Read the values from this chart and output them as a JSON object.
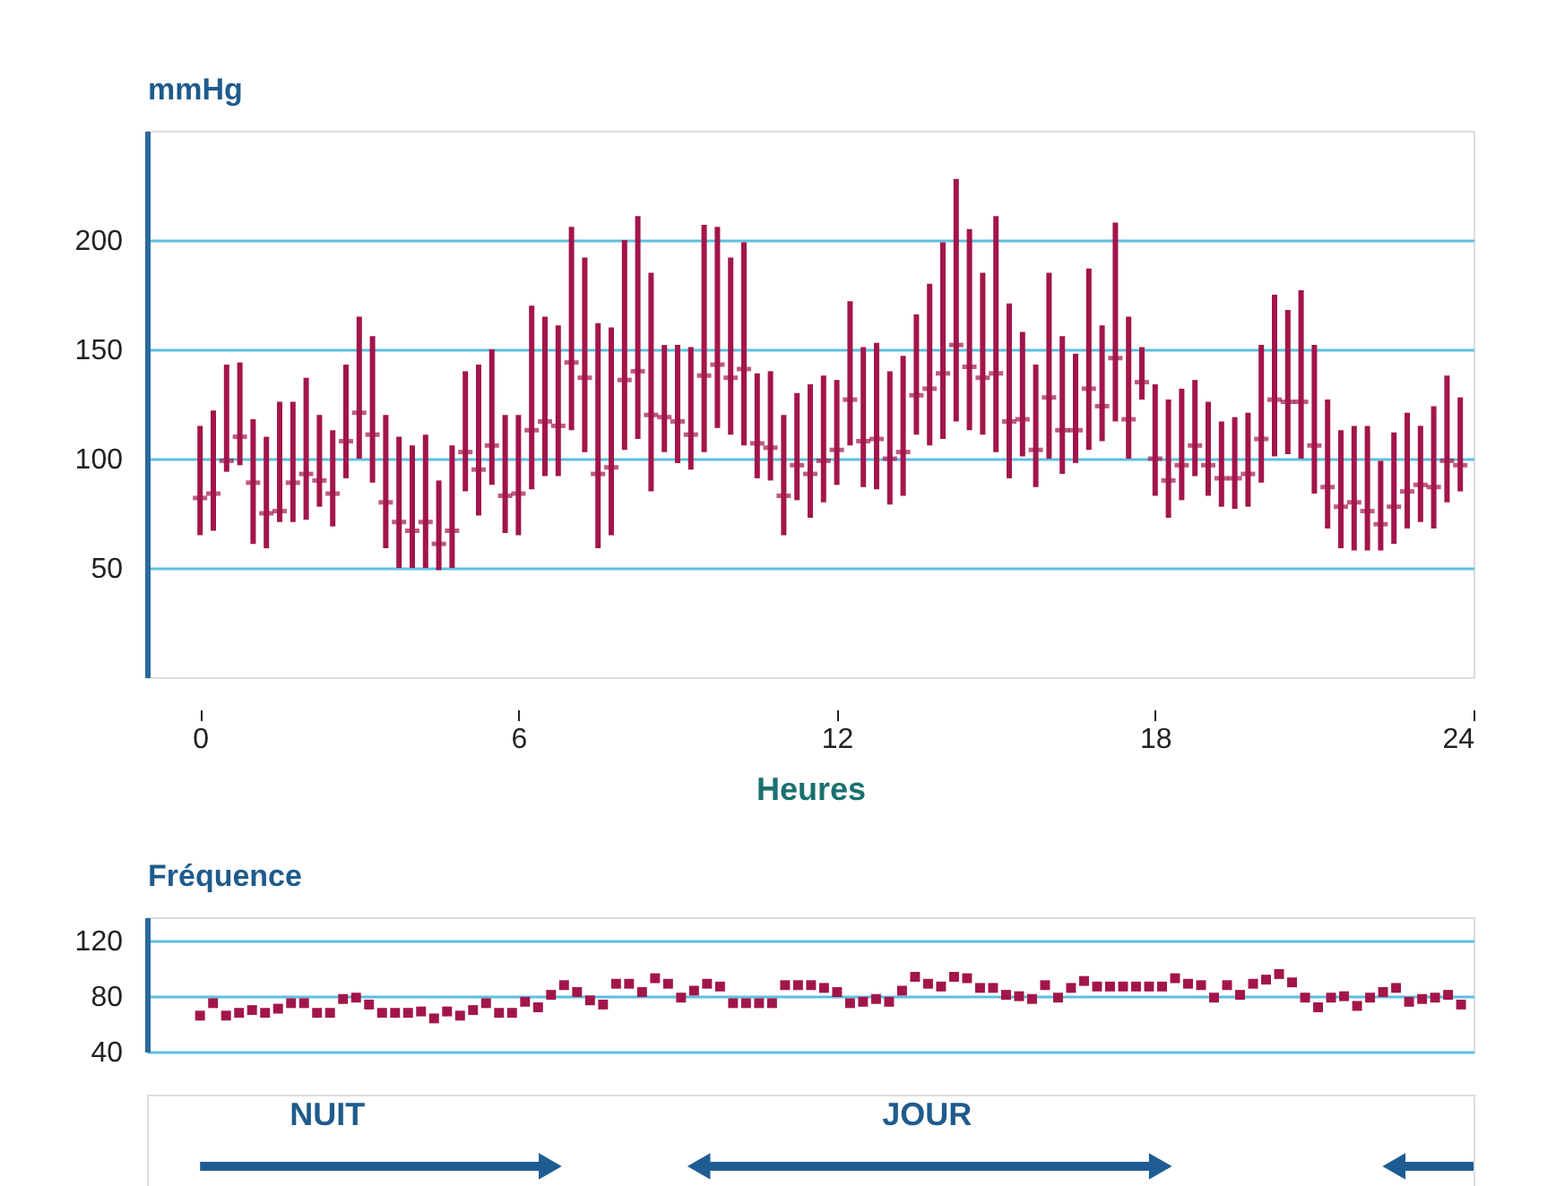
{
  "chart_data": [
    {
      "type": "scatter",
      "ylabel": "mmHg",
      "xlabel": "Heures",
      "color": "#a3154a",
      "grid": "y",
      "xlim": [
        -1,
        24
      ],
      "xticks": [
        0,
        6,
        12,
        18,
        24
      ],
      "ylim": [
        0,
        250
      ],
      "yticks": [
        50,
        100,
        150,
        200
      ],
      "x": [
        0,
        0.25,
        0.5,
        0.75,
        1,
        1.25,
        1.5,
        1.75,
        2,
        2.25,
        2.5,
        2.75,
        3,
        3.25,
        3.5,
        3.75,
        4,
        4.25,
        4.5,
        4.75,
        5,
        5.25,
        5.5,
        5.75,
        6,
        6.25,
        6.5,
        6.75,
        7,
        7.25,
        7.5,
        7.75,
        8,
        8.25,
        8.5,
        8.75,
        9,
        9.25,
        9.5,
        9.75,
        10,
        10.25,
        10.5,
        10.75,
        11,
        11.25,
        11.5,
        11.75,
        12,
        12.25,
        12.5,
        12.75,
        13,
        13.25,
        13.5,
        13.75,
        14,
        14.25,
        14.5,
        14.75,
        15,
        15.25,
        15.5,
        15.75,
        16,
        16.25,
        16.5,
        16.75,
        17,
        17.25,
        17.5,
        17.75,
        18,
        18.25,
        18.5,
        18.75,
        19,
        19.25,
        19.5,
        19.75,
        20,
        20.25,
        20.5,
        20.75,
        21,
        21.25,
        21.5,
        21.75,
        22,
        22.25,
        22.5,
        22.75,
        23,
        23.25,
        23.5,
        23.75
      ],
      "values": [
        82,
        84,
        99,
        110,
        89,
        75,
        76,
        89,
        93,
        90,
        84,
        108,
        121,
        111,
        80,
        71,
        67,
        71,
        61,
        67,
        103,
        95,
        106,
        83,
        84,
        113,
        117,
        115,
        144,
        137,
        93,
        96,
        136,
        140,
        120,
        119,
        117,
        111,
        138,
        143,
        137,
        141,
        107,
        105,
        83,
        97,
        93,
        99,
        104,
        127,
        108,
        109,
        100,
        103,
        129,
        132,
        139,
        152,
        142,
        137,
        139,
        117,
        118,
        104,
        128,
        113,
        113,
        132,
        124,
        146,
        118,
        135,
        100,
        90,
        97,
        106,
        97,
        91,
        91,
        93,
        109,
        127,
        126,
        126,
        106,
        87,
        78,
        80,
        76,
        70,
        78,
        85,
        88,
        87,
        99,
        97
      ],
      "errors": [
        [
          65,
          115
        ],
        [
          67,
          122
        ],
        [
          94,
          143
        ],
        [
          97,
          144
        ],
        [
          61,
          118
        ],
        [
          59,
          110
        ],
        [
          71,
          126
        ],
        [
          71,
          126
        ],
        [
          72,
          137
        ],
        [
          78,
          120
        ],
        [
          69,
          113
        ],
        [
          91,
          143
        ],
        [
          100,
          165
        ],
        [
          89,
          156
        ],
        [
          59,
          120
        ],
        [
          50,
          110
        ],
        [
          50,
          106
        ],
        [
          50,
          111
        ],
        [
          49,
          90
        ],
        [
          50,
          106
        ],
        [
          85,
          140
        ],
        [
          74,
          143
        ],
        [
          88,
          150
        ],
        [
          66,
          120
        ],
        [
          65,
          120
        ],
        [
          86,
          170
        ],
        [
          92,
          165
        ],
        [
          92,
          161
        ],
        [
          113,
          206
        ],
        [
          103,
          192
        ],
        [
          59,
          162
        ],
        [
          65,
          160
        ],
        [
          104,
          200
        ],
        [
          109,
          211
        ],
        [
          85,
          185
        ],
        [
          103,
          152
        ],
        [
          98,
          152
        ],
        [
          95,
          151
        ],
        [
          103,
          207
        ],
        [
          114,
          206
        ],
        [
          111,
          192
        ],
        [
          106,
          199
        ],
        [
          91,
          139
        ],
        [
          90,
          140
        ],
        [
          65,
          120
        ],
        [
          81,
          130
        ],
        [
          73,
          134
        ],
        [
          80,
          138
        ],
        [
          88,
          136
        ],
        [
          106,
          172
        ],
        [
          87,
          151
        ],
        [
          86,
          153
        ],
        [
          79,
          140
        ],
        [
          83,
          147
        ],
        [
          111,
          166
        ],
        [
          106,
          180
        ],
        [
          109,
          199
        ],
        [
          117,
          228
        ],
        [
          113,
          205
        ],
        [
          111,
          185
        ],
        [
          103,
          211
        ],
        [
          91,
          171
        ],
        [
          101,
          158
        ],
        [
          87,
          143
        ],
        [
          100,
          185
        ],
        [
          93,
          156
        ],
        [
          98,
          148
        ],
        [
          104,
          187
        ],
        [
          108,
          161
        ],
        [
          117,
          208
        ],
        [
          100,
          165
        ],
        [
          127,
          151
        ],
        [
          83,
          134
        ],
        [
          73,
          127
        ],
        [
          81,
          132
        ],
        [
          92,
          136
        ],
        [
          83,
          126
        ],
        [
          78,
          117
        ],
        [
          77,
          119
        ],
        [
          78,
          121
        ],
        [
          89,
          152
        ],
        [
          101,
          175
        ],
        [
          102,
          168
        ],
        [
          100,
          177
        ],
        [
          84,
          152
        ],
        [
          68,
          127
        ],
        [
          59,
          113
        ],
        [
          58,
          115
        ],
        [
          58,
          115
        ],
        [
          58,
          99
        ],
        [
          61,
          112
        ],
        [
          68,
          121
        ],
        [
          71,
          115
        ],
        [
          68,
          124
        ],
        [
          80,
          138
        ],
        [
          85,
          128
        ]
      ]
    },
    {
      "type": "scatter",
      "ylabel": "Fréquence",
      "color": "#a3154a",
      "grid": "y",
      "marker": "square",
      "tick_labels": "y",
      "xlim": [
        -1,
        24
      ],
      "ylim": [
        40,
        137
      ],
      "yticks": [
        40,
        80,
        120
      ],
      "x": [
        0,
        0.245,
        0.49,
        0.735,
        0.98,
        1.225,
        1.47,
        1.715,
        1.96,
        2.205,
        2.45,
        2.695,
        2.94,
        3.185,
        3.43,
        3.675,
        3.92,
        4.165,
        4.41,
        4.655,
        4.9,
        5.145,
        5.39,
        5.635,
        5.88,
        6.125,
        6.37,
        6.615,
        6.86,
        7.105,
        7.35,
        7.595,
        7.84,
        8.085,
        8.33,
        8.575,
        8.82,
        9.065,
        9.31,
        9.555,
        9.8,
        10.045,
        10.29,
        10.535,
        10.78,
        11.025,
        11.27,
        11.515,
        11.76,
        12.005,
        12.25,
        12.495,
        12.74,
        12.985,
        13.23,
        13.475,
        13.72,
        13.965,
        14.21,
        14.455,
        14.7,
        14.945,
        15.19,
        15.435,
        15.68,
        15.925,
        16.17,
        16.415,
        16.66,
        16.905,
        17.15,
        17.395,
        17.64,
        17.885,
        18.13,
        18.375,
        18.62,
        18.865,
        19.11,
        19.355,
        19.6,
        19.845,
        20.09,
        20.335,
        20.58,
        20.825,
        21.07,
        21.315,
        21.56,
        21.805,
        22.05,
        22.295,
        22.54,
        22.785,
        23.03,
        23.275,
        23.52,
        23.765
      ],
      "values": [
        66,
        75,
        66,
        68,
        70,
        68,
        71,
        75,
        75,
        68,
        68,
        78,
        79,
        74,
        68,
        68,
        68,
        69,
        64,
        69,
        66,
        70,
        75,
        68,
        68,
        76,
        72,
        81,
        88,
        83,
        77,
        74,
        89,
        89,
        83,
        93,
        89,
        79,
        84,
        89,
        87,
        75,
        75,
        75,
        75,
        88,
        88,
        88,
        86,
        83,
        75,
        76,
        78,
        76,
        84,
        94,
        89,
        87,
        94,
        93,
        86,
        86,
        81,
        80,
        78,
        88,
        79,
        86,
        91,
        87,
        87,
        87,
        87,
        87,
        87,
        93,
        89,
        88,
        79,
        88,
        81,
        89,
        92,
        96,
        90,
        79,
        72,
        79,
        80,
        73,
        79,
        83,
        86,
        76,
        78,
        79,
        81,
        74
      ],
      "annotations": [
        "NUIT",
        "JOUR"
      ]
    }
  ]
}
